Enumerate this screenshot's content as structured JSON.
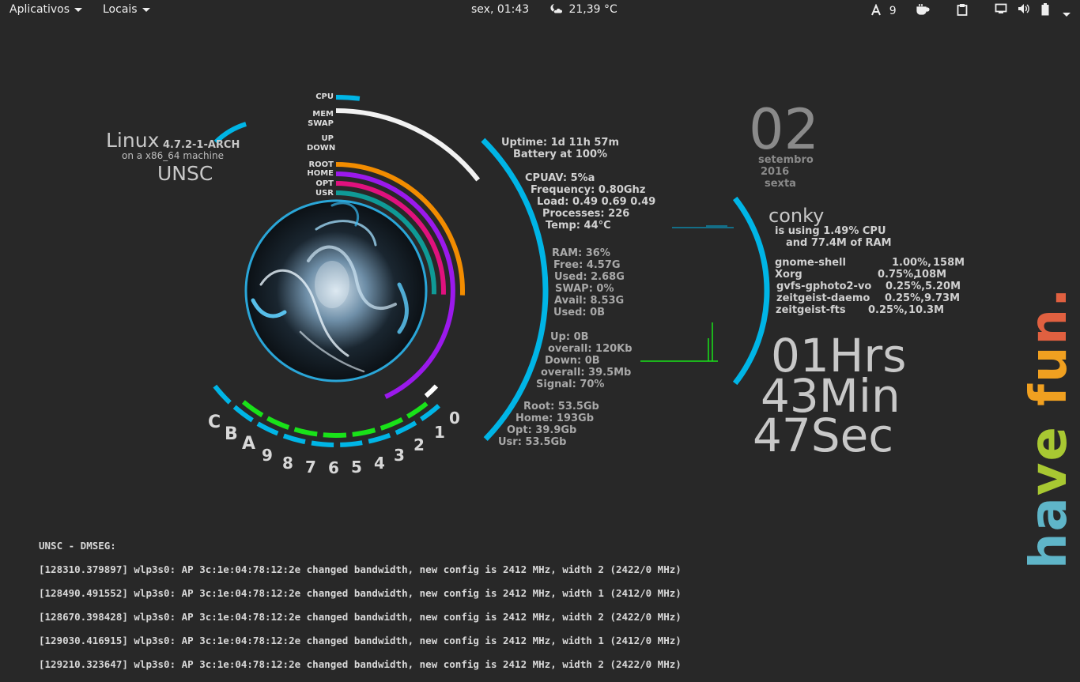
{
  "topbar": {
    "apps_menu": "Aplicativos",
    "places_menu": "Locais",
    "clock": "sex, 01:43",
    "weather_icon": "moon-cloud-icon",
    "weather": "21,39 °C",
    "tray_count": "9",
    "icons": [
      "tray-app-icon",
      "coffee-icon",
      "clipboard-icon",
      "display-icon",
      "volume-icon",
      "battery-icon"
    ]
  },
  "rings": {
    "labels": [
      "CPU",
      "MEM",
      "SWAP",
      "UP",
      "DOWN",
      "ROOT",
      "HOME",
      "OPT",
      "USR"
    ],
    "cpu_percent": 5,
    "mem_percent": 36,
    "swap_percent": 0,
    "colors": {
      "cpu": "#00b5e6",
      "mem": "#f2f2f2",
      "root": "#f28c00",
      "home": "#9b19ec",
      "opt": "#e0117e",
      "usr": "#0f9a96",
      "circle": "#2aa6d8",
      "bottom_green": "#19e219",
      "bottom_blue": "#00b5e6"
    }
  },
  "system": {
    "os": "Linux",
    "kernel": "4.7.2-1-ARCH",
    "machine": "on a x86_64 machine",
    "hostname": "UNSC"
  },
  "gauge_labels": [
    "C",
    "B",
    "A",
    "9",
    "8",
    "7",
    "6",
    "5",
    "4",
    "3",
    "2",
    "1",
    "0"
  ],
  "stats": {
    "uptime": "Uptime: 1d 11h 57m",
    "battery": "Battery at 100%",
    "cpu_av": "CPUAV: 5%a",
    "frequency": "Frequency: 0.80Ghz",
    "load": "Load: 0.49 0.69 0.49",
    "processes": "Processes: 226",
    "temp": "Temp: 44°C",
    "ram": "RAM: 36%",
    "free": "Free: 4.57G",
    "used": "Used: 2.68G",
    "swap": "SWAP: 0%",
    "avail": "Avail: 8.53G",
    "swap_used": "Used: 0B",
    "up": "Up: 0B",
    "up_overall": "overall: 120Kb",
    "down": "Down: 0B",
    "down_overall": "overall: 39.5Mb",
    "signal": "Signal: 70%",
    "root": "Root: 53.5Gb",
    "home": "Home: 193Gb",
    "opt": "Opt: 39.9Gb",
    "usr": "Usr: 53.5Gb"
  },
  "date": {
    "day": "02",
    "month": "setembro",
    "year": "2016",
    "weekday": "sexta"
  },
  "conky": {
    "title": "conky",
    "using_cpu": "is using  1.49% CPU",
    "using_ram": "and 77.4M of RAM",
    "processes": [
      {
        "name": "gnome-shell",
        "cpu": "1.00%,",
        "mem": "158M"
      },
      {
        "name": "Xorg",
        "cpu": "0.75%,",
        "mem": "108M"
      },
      {
        "name": "gvfs-gphoto2-vo",
        "cpu": "0.25%,",
        "mem": "5.20M"
      },
      {
        "name": "zeitgeist-daemo",
        "cpu": "0.25%,",
        "mem": "9.73M"
      },
      {
        "name": "zeitgeist-fts",
        "cpu": "0.25%,",
        "mem": "10.3M"
      }
    ]
  },
  "time": {
    "hours": "01Hrs",
    "minutes": "43Min",
    "seconds": "47Sec"
  },
  "dmesg": {
    "title": "UNSC - DMSEG:",
    "lines": [
      "[128310.379897] wlp3s0: AP 3c:1e:04:78:12:2e changed bandwidth, new config is 2412 MHz, width 2 (2422/0 MHz)",
      "[128490.491552] wlp3s0: AP 3c:1e:04:78:12:2e changed bandwidth, new config is 2412 MHz, width 1 (2412/0 MHz)",
      "[128670.398428] wlp3s0: AP 3c:1e:04:78:12:2e changed bandwidth, new config is 2412 MHz, width 2 (2422/0 MHz)",
      "[129030.416915] wlp3s0: AP 3c:1e:04:78:12:2e changed bandwidth, new config is 2412 MHz, width 1 (2412/0 MHz)",
      "[129210.323647] wlp3s0: AP 3c:1e:04:78:12:2e changed bandwidth, new config is 2412 MHz, width 2 (2422/0 MHz)"
    ]
  },
  "slogan": {
    "letters": [
      "h",
      "a",
      "v",
      "e",
      " ",
      "f",
      "u",
      "n",
      "."
    ],
    "colors": [
      "#5fb5c8",
      "#5fb5c8",
      "#a8c832",
      "#a8c832",
      "#ffffff",
      "#f0a020",
      "#f0a020",
      "#e06040",
      "#e06040"
    ]
  }
}
